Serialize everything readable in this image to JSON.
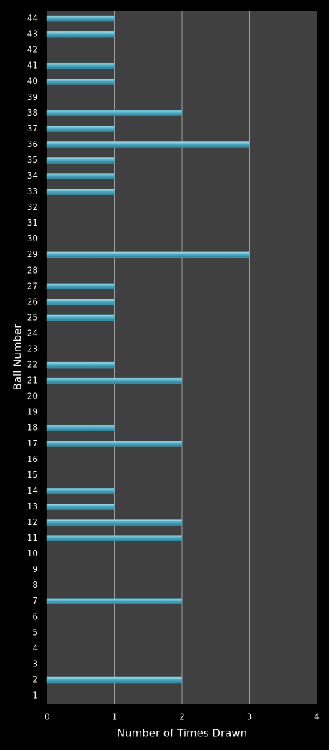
{
  "chart_data": {
    "type": "hbar",
    "x_label": "Number of Times Drawn",
    "y_label": "Ball Number",
    "categories": [
      "1",
      "2",
      "3",
      "4",
      "5",
      "6",
      "7",
      "8",
      "9",
      "10",
      "11",
      "12",
      "13",
      "14",
      "15",
      "16",
      "17",
      "18",
      "19",
      "20",
      "21",
      "22",
      "23",
      "24",
      "25",
      "26",
      "27",
      "28",
      "29",
      "30",
      "31",
      "32",
      "33",
      "34",
      "35",
      "36",
      "37",
      "38",
      "39",
      "40",
      "41",
      "42",
      "43",
      "44"
    ],
    "values": [
      0,
      2,
      0,
      0,
      0,
      0,
      2,
      0,
      0,
      0,
      2,
      2,
      1,
      1,
      0,
      0,
      2,
      1,
      0,
      0,
      2,
      1,
      0,
      0,
      1,
      1,
      1,
      0,
      3,
      0,
      0,
      0,
      1,
      1,
      1,
      3,
      1,
      2,
      0,
      1,
      1,
      0,
      1,
      1
    ],
    "color": "#4bacc6",
    "xlim": [
      0,
      4
    ],
    "xticks": [
      0,
      1,
      2,
      3,
      4
    ],
    "grid": true
  }
}
